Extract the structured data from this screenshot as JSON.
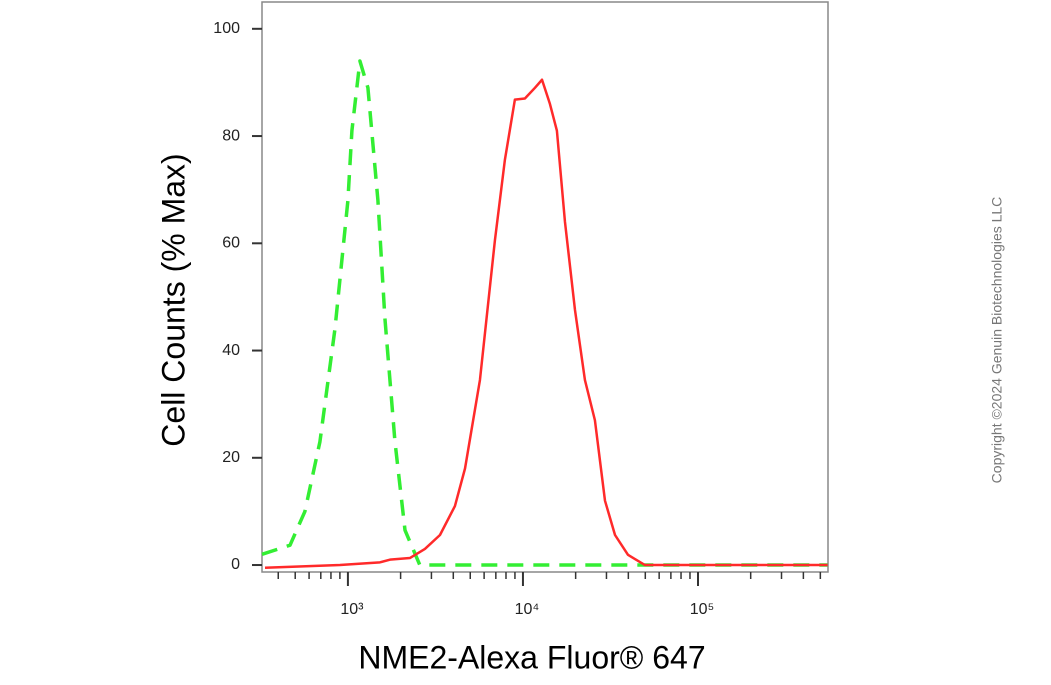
{
  "chart_data": {
    "type": "line",
    "xlabel": "NME2-Alexa Fluor® 647",
    "ylabel": "Cell Counts (% Max)",
    "watermark": "Copyright ©2024 Genuin Biotechnologies LLC",
    "xscale": "log",
    "xlim": [
      323,
      553000
    ],
    "ylim": [
      -1.3,
      105
    ],
    "xticks": [
      {
        "value": 1000,
        "label": "10³"
      },
      {
        "value": 10000,
        "label": "10⁴"
      },
      {
        "value": 100000,
        "label": "10⁵"
      }
    ],
    "xminorticks": [
      400,
      500,
      600,
      700,
      800,
      900,
      2000,
      3000,
      4000,
      5000,
      6000,
      7000,
      8000,
      9000,
      20000,
      30000,
      40000,
      50000,
      60000,
      70000,
      80000,
      90000,
      200000,
      300000,
      400000,
      500000
    ],
    "yticks": [
      0,
      20,
      40,
      60,
      80,
      100
    ],
    "series": [
      {
        "color": "#33ee33",
        "dash": true,
        "x": [
          323,
          467,
          568,
          692,
          843,
          1000,
          1054,
          1171,
          1301,
          1484,
          1627,
          1857,
          2119,
          2575,
          550000
        ],
        "values": [
          2,
          3.7,
          10,
          23,
          44,
          68,
          81,
          94,
          89,
          68,
          46,
          23,
          6.5,
          0,
          0
        ]
      },
      {
        "color": "#ff2a2a",
        "dash": false,
        "x": [
          336,
          900,
          1524,
          1738,
          2259,
          2754,
          3357,
          4087,
          4667,
          5679,
          6918,
          7888,
          8995,
          10260,
          11710,
          12850,
          14260,
          15630,
          17380,
          19820,
          22600,
          25770,
          29420,
          33570,
          39810,
          49770,
          550000
        ],
        "values": [
          -0.5,
          0,
          0.5,
          1,
          1.3,
          3,
          5.6,
          11,
          18,
          34.5,
          60.6,
          75.6,
          86.8,
          87,
          89,
          90.5,
          86,
          81,
          64,
          47.6,
          34.5,
          27,
          12,
          5.6,
          1.9,
          0,
          0
        ]
      }
    ]
  }
}
